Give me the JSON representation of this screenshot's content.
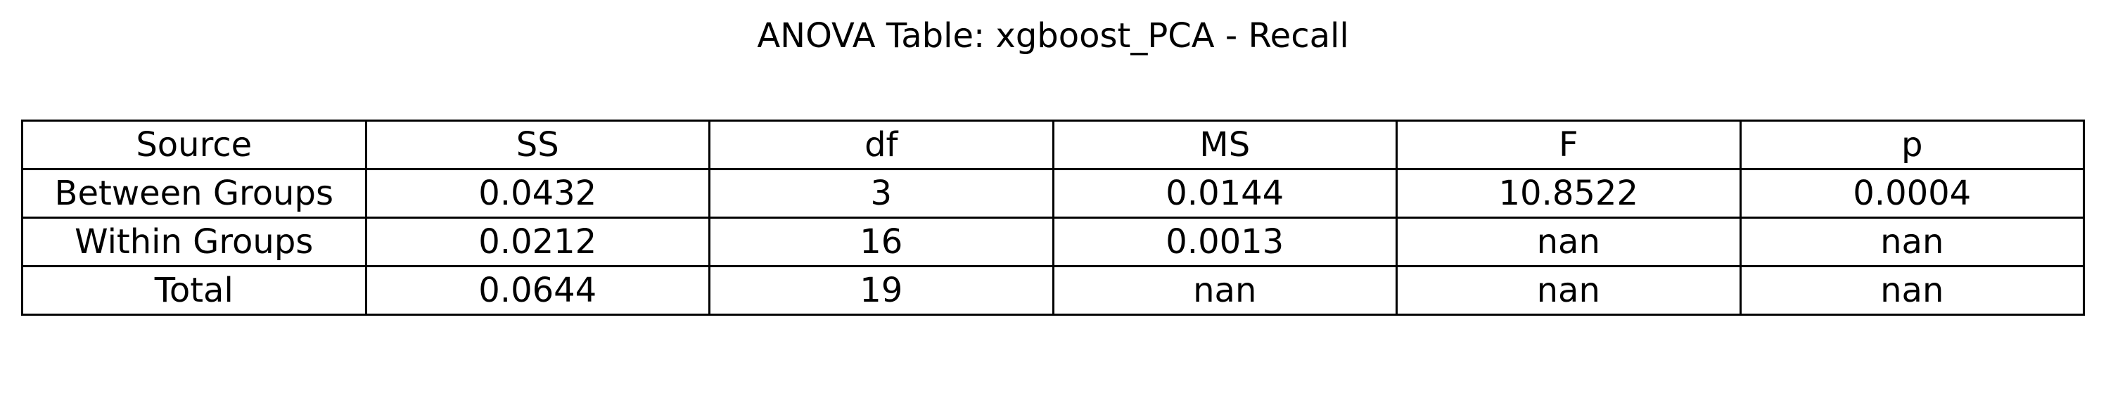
{
  "chart_data": {
    "type": "table",
    "title": "ANOVA Table: xgboost_PCA - Recall",
    "columns": [
      "Source",
      "SS",
      "df",
      "MS",
      "F",
      "p"
    ],
    "rows": [
      [
        "Between Groups",
        "0.0432",
        "3",
        "0.0144",
        "10.8522",
        "0.0004"
      ],
      [
        "Within Groups",
        "0.0212",
        "16",
        "0.0013",
        "nan",
        "nan"
      ],
      [
        "Total",
        "0.0644",
        "19",
        "nan",
        "nan",
        "nan"
      ]
    ]
  }
}
